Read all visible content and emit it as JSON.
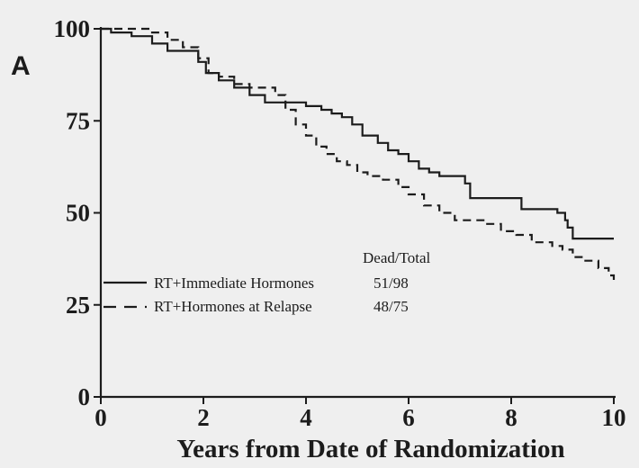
{
  "chart_data": {
    "type": "line",
    "panel_label": "A",
    "title": "",
    "xlabel": "Years from Date of Randomization",
    "ylabel": "",
    "xlim": [
      0,
      10
    ],
    "ylim": [
      0,
      100
    ],
    "xticks": [
      0,
      2,
      4,
      6,
      8,
      10
    ],
    "yticks": [
      0,
      25,
      50,
      75,
      100
    ],
    "grid": false,
    "legend": {
      "placement": "center-left",
      "header": "Dead/Total",
      "entries": [
        {
          "label": "RT+Immediate Hormones",
          "value": "51/98",
          "style": "solid"
        },
        {
          "label": "RT+Hormones at Relapse",
          "value": "48/75",
          "style": "dashed"
        }
      ]
    },
    "series": [
      {
        "name": "RT+Immediate Hormones",
        "style": "solid",
        "x": [
          0,
          0.2,
          0.6,
          1.0,
          1.3,
          1.9,
          2.05,
          2.3,
          2.6,
          2.9,
          3.2,
          3.4,
          3.7,
          4.0,
          4.3,
          4.5,
          4.7,
          4.9,
          5.1,
          5.4,
          5.6,
          5.8,
          6.0,
          6.2,
          6.4,
          6.6,
          6.9,
          7.1,
          7.2,
          7.5,
          7.8,
          8.0,
          8.2,
          8.5,
          8.7,
          8.9,
          9.05,
          9.1,
          9.2,
          9.5,
          9.8,
          10.0
        ],
        "y": [
          100,
          99,
          98,
          96,
          94,
          91,
          88,
          86,
          84,
          82,
          80,
          80,
          80,
          79,
          78,
          77,
          76,
          74,
          71,
          69,
          67,
          66,
          64,
          62,
          61,
          60,
          60,
          58,
          54,
          54,
          54,
          54,
          51,
          51,
          51,
          50,
          48,
          46,
          43,
          43,
          43,
          43
        ]
      },
      {
        "name": "RT+Hormones at Relapse",
        "style": "dashed",
        "x": [
          0,
          0.5,
          1.0,
          1.3,
          1.6,
          1.9,
          2.1,
          2.3,
          2.6,
          2.9,
          3.2,
          3.4,
          3.6,
          3.8,
          4.0,
          4.2,
          4.4,
          4.6,
          4.8,
          5.0,
          5.2,
          5.5,
          5.8,
          6.0,
          6.3,
          6.6,
          6.9,
          7.2,
          7.5,
          7.8,
          8.1,
          8.4,
          8.8,
          9.0,
          9.2,
          9.4,
          9.7,
          9.9,
          10.0
        ],
        "y": [
          100,
          100,
          99,
          97,
          95,
          92,
          88,
          87,
          85,
          84,
          84,
          82,
          78,
          74,
          71,
          68,
          66,
          64,
          63,
          61,
          60,
          59,
          57,
          55,
          52,
          50,
          48,
          48,
          47,
          45,
          44,
          42,
          41,
          40,
          38,
          37,
          35,
          33,
          31
        ]
      }
    ]
  }
}
